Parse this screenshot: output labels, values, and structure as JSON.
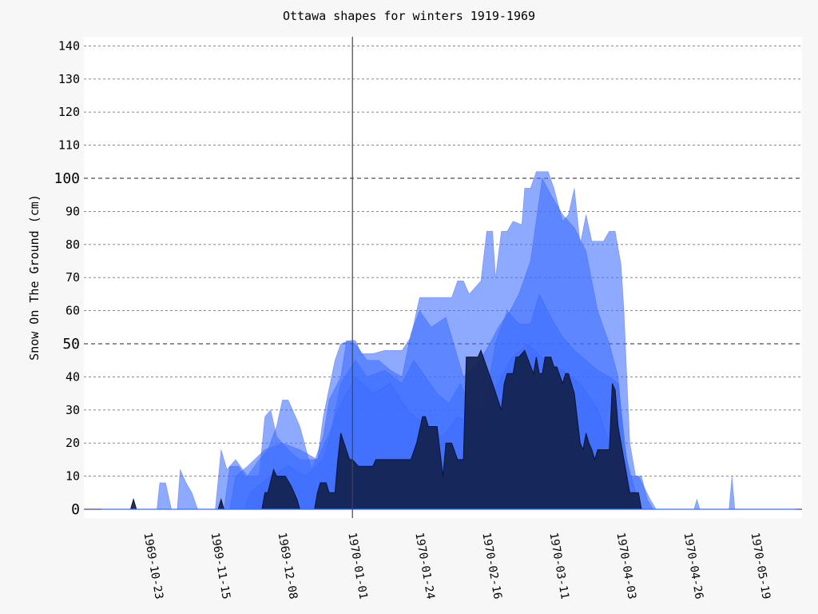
{
  "chart_data": {
    "type": "area",
    "title": "Ottawa shapes for winters 1919-1969",
    "xlabel": "",
    "ylabel": "Snow On The Ground (cm)",
    "ylim": [
      0,
      142
    ],
    "xlim": [
      "1969-10-01",
      "1970-06-04"
    ],
    "x_ticks": [
      "1969-10-23",
      "1969-11-15",
      "1969-12-08",
      "1970-01-01",
      "1970-01-24",
      "1970-02-16",
      "1970-03-11",
      "1970-04-03",
      "1970-04-26",
      "1970-05-19"
    ],
    "y_ticks": [
      0,
      10,
      20,
      30,
      40,
      50,
      60,
      70,
      80,
      90,
      100,
      110,
      120,
      130,
      140
    ],
    "y_major_ticks": [
      0,
      50,
      100
    ],
    "grid": true,
    "vline": "1970-01-01",
    "colors": {
      "winter_fill": "#3d6cff",
      "highlight_fill": "#13214f",
      "background": "#f7f7f7",
      "plot_background": "#ffffff"
    },
    "series": [
      {
        "values": [
          [
            "1969-10-07",
            0
          ],
          [
            "1969-10-26",
            0
          ],
          [
            "1969-10-27",
            8
          ],
          [
            "1969-10-29",
            8
          ],
          [
            "1969-10-31",
            0
          ],
          [
            "1969-11-02",
            0
          ],
          [
            "1969-11-03",
            12
          ],
          [
            "1969-11-05",
            8
          ],
          [
            "1969-11-07",
            5
          ],
          [
            "1969-11-09",
            0
          ],
          [
            "1969-11-18",
            0
          ],
          [
            "1969-11-20",
            13
          ],
          [
            "1969-11-23",
            13
          ],
          [
            "1969-11-25",
            10
          ],
          [
            "1969-11-30",
            10
          ],
          [
            "1969-12-02",
            28
          ],
          [
            "1969-12-04",
            30
          ],
          [
            "1969-12-06",
            22
          ],
          [
            "1969-12-10",
            18
          ],
          [
            "1969-12-14",
            15
          ],
          [
            "1969-12-20",
            15
          ],
          [
            "1969-12-22",
            28
          ],
          [
            "1969-12-26",
            45
          ],
          [
            "1969-12-28",
            50
          ],
          [
            "1969-12-31",
            51
          ],
          [
            "1970-01-02",
            51
          ],
          [
            "1970-01-04",
            47
          ],
          [
            "1970-01-08",
            47
          ],
          [
            "1970-01-12",
            48
          ],
          [
            "1970-01-18",
            48
          ],
          [
            "1970-01-21",
            52
          ],
          [
            "1970-01-24",
            64
          ],
          [
            "1970-01-30",
            64
          ],
          [
            "1970-02-04",
            64
          ],
          [
            "1970-02-06",
            69
          ],
          [
            "1970-02-08",
            69
          ],
          [
            "1970-02-10",
            65
          ],
          [
            "1970-02-14",
            69
          ],
          [
            "1970-02-16",
            84
          ],
          [
            "1970-02-18",
            84
          ],
          [
            "1970-02-19",
            70
          ],
          [
            "1970-02-21",
            84
          ],
          [
            "1970-02-23",
            84
          ],
          [
            "1970-02-25",
            87
          ],
          [
            "1970-02-28",
            86
          ],
          [
            "1970-03-01",
            97
          ],
          [
            "1970-03-03",
            97
          ],
          [
            "1970-03-05",
            102
          ],
          [
            "1970-03-09",
            102
          ],
          [
            "1970-03-11",
            97
          ],
          [
            "1970-03-14",
            87
          ],
          [
            "1970-03-16",
            89
          ],
          [
            "1970-03-18",
            97
          ],
          [
            "1970-03-20",
            80
          ],
          [
            "1970-03-22",
            89
          ],
          [
            "1970-03-24",
            81
          ],
          [
            "1970-03-28",
            81
          ],
          [
            "1970-03-30",
            84
          ],
          [
            "1970-04-01",
            84
          ],
          [
            "1970-04-03",
            74
          ],
          [
            "1970-04-04",
            60
          ],
          [
            "1970-04-05",
            40
          ],
          [
            "1970-04-06",
            20
          ],
          [
            "1970-04-08",
            10
          ],
          [
            "1970-04-10",
            10
          ],
          [
            "1970-04-12",
            3
          ],
          [
            "1970-04-14",
            0
          ],
          [
            "1970-06-02",
            0
          ]
        ]
      },
      {
        "values": [
          [
            "1969-10-07",
            0
          ],
          [
            "1969-11-15",
            0
          ],
          [
            "1969-11-17",
            18
          ],
          [
            "1969-11-19",
            12
          ],
          [
            "1969-11-22",
            15
          ],
          [
            "1969-11-26",
            10
          ],
          [
            "1969-11-30",
            15
          ],
          [
            "1969-12-03",
            18
          ],
          [
            "1969-12-06",
            25
          ],
          [
            "1969-12-08",
            33
          ],
          [
            "1969-12-10",
            33
          ],
          [
            "1969-12-14",
            25
          ],
          [
            "1969-12-18",
            12
          ],
          [
            "1969-12-22",
            22
          ],
          [
            "1969-12-24",
            33
          ],
          [
            "1969-12-28",
            40
          ],
          [
            "1969-12-30",
            51
          ],
          [
            "1970-01-02",
            50
          ],
          [
            "1970-01-06",
            45
          ],
          [
            "1970-01-10",
            45
          ],
          [
            "1970-01-14",
            42
          ],
          [
            "1970-01-18",
            40
          ],
          [
            "1970-01-21",
            53
          ],
          [
            "1970-01-24",
            60
          ],
          [
            "1970-01-28",
            55
          ],
          [
            "1970-02-02",
            58
          ],
          [
            "1970-02-08",
            40
          ],
          [
            "1970-02-13",
            44
          ],
          [
            "1970-02-17",
            50
          ],
          [
            "1970-02-20",
            55
          ],
          [
            "1970-02-24",
            60
          ],
          [
            "1970-02-27",
            65
          ],
          [
            "1970-03-03",
            75
          ],
          [
            "1970-03-07",
            100
          ],
          [
            "1970-03-10",
            95
          ],
          [
            "1970-03-14",
            89
          ],
          [
            "1970-03-18",
            85
          ],
          [
            "1970-03-22",
            78
          ],
          [
            "1970-03-26",
            60
          ],
          [
            "1970-03-30",
            50
          ],
          [
            "1970-04-02",
            40
          ],
          [
            "1970-04-04",
            20
          ],
          [
            "1970-04-06",
            10
          ],
          [
            "1970-04-09",
            10
          ],
          [
            "1970-04-13",
            3
          ],
          [
            "1970-04-15",
            0
          ],
          [
            "1970-06-02",
            0
          ]
        ]
      },
      {
        "values": [
          [
            "1969-10-07",
            0
          ],
          [
            "1969-11-20",
            0
          ],
          [
            "1969-11-22",
            10
          ],
          [
            "1969-11-26",
            13
          ],
          [
            "1969-12-02",
            18
          ],
          [
            "1969-12-08",
            20
          ],
          [
            "1969-12-14",
            18
          ],
          [
            "1969-12-20",
            15
          ],
          [
            "1969-12-25",
            25
          ],
          [
            "1969-12-28",
            38
          ],
          [
            "1970-01-02",
            45
          ],
          [
            "1970-01-06",
            40
          ],
          [
            "1970-01-12",
            42
          ],
          [
            "1970-01-18",
            38
          ],
          [
            "1970-01-22",
            45
          ],
          [
            "1970-01-26",
            40
          ],
          [
            "1970-01-30",
            35
          ],
          [
            "1970-02-03",
            32
          ],
          [
            "1970-02-07",
            38
          ],
          [
            "1970-02-11",
            30
          ],
          [
            "1970-02-15",
            30
          ],
          [
            "1970-02-19",
            50
          ],
          [
            "1970-02-23",
            60
          ],
          [
            "1970-02-27",
            56
          ],
          [
            "1970-03-03",
            56
          ],
          [
            "1970-03-06",
            65
          ],
          [
            "1970-03-10",
            58
          ],
          [
            "1970-03-14",
            52
          ],
          [
            "1970-03-18",
            48
          ],
          [
            "1970-03-22",
            45
          ],
          [
            "1970-03-26",
            42
          ],
          [
            "1970-03-30",
            40
          ],
          [
            "1970-04-02",
            38
          ],
          [
            "1970-04-05",
            15
          ],
          [
            "1970-04-08",
            5
          ],
          [
            "1970-04-10",
            0
          ],
          [
            "1970-06-02",
            0
          ]
        ]
      },
      {
        "values": [
          [
            "1969-10-07",
            0
          ],
          [
            "1969-11-25",
            0
          ],
          [
            "1969-11-27",
            5
          ],
          [
            "1969-12-04",
            10
          ],
          [
            "1969-12-10",
            13
          ],
          [
            "1969-12-16",
            10
          ],
          [
            "1969-12-22",
            15
          ],
          [
            "1969-12-27",
            30
          ],
          [
            "1970-01-02",
            40
          ],
          [
            "1970-01-08",
            35
          ],
          [
            "1970-01-14",
            38
          ],
          [
            "1970-01-20",
            30
          ],
          [
            "1970-01-26",
            25
          ],
          [
            "1970-02-01",
            22
          ],
          [
            "1970-02-06",
            28
          ],
          [
            "1970-02-12",
            25
          ],
          [
            "1970-02-18",
            35
          ],
          [
            "1970-02-24",
            45
          ],
          [
            "1970-03-02",
            50
          ],
          [
            "1970-03-08",
            45
          ],
          [
            "1970-03-14",
            42
          ],
          [
            "1970-03-20",
            38
          ],
          [
            "1970-03-26",
            30
          ],
          [
            "1970-04-01",
            15
          ],
          [
            "1970-04-05",
            5
          ],
          [
            "1970-04-08",
            0
          ],
          [
            "1970-06-02",
            0
          ]
        ]
      },
      {
        "values": [
          [
            "1969-10-07",
            0
          ],
          [
            "1970-04-28",
            0
          ],
          [
            "1970-04-29",
            3
          ],
          [
            "1970-04-30",
            0
          ],
          [
            "1970-05-10",
            0
          ],
          [
            "1970-05-11",
            10
          ],
          [
            "1970-05-12",
            0
          ],
          [
            "1970-06-02",
            0
          ]
        ]
      },
      {
        "highlight": true,
        "values": [
          [
            "1969-10-07",
            0
          ],
          [
            "1969-10-17",
            0
          ],
          [
            "1969-10-18",
            3
          ],
          [
            "1969-10-19",
            0
          ],
          [
            "1969-11-16",
            0
          ],
          [
            "1969-11-17",
            3
          ],
          [
            "1969-11-18",
            0
          ],
          [
            "1969-12-01",
            0
          ],
          [
            "1969-12-02",
            5
          ],
          [
            "1969-12-03",
            5
          ],
          [
            "1969-12-05",
            12
          ],
          [
            "1969-12-06",
            10
          ],
          [
            "1969-12-09",
            10
          ],
          [
            "1969-12-11",
            7
          ],
          [
            "1969-12-13",
            3
          ],
          [
            "1969-12-14",
            0
          ],
          [
            "1969-12-19",
            0
          ],
          [
            "1969-12-20",
            5
          ],
          [
            "1969-12-21",
            8
          ],
          [
            "1969-12-23",
            8
          ],
          [
            "1969-12-24",
            5
          ],
          [
            "1969-12-26",
            5
          ],
          [
            "1969-12-27",
            15
          ],
          [
            "1969-12-28",
            23
          ],
          [
            "1969-12-31",
            15
          ],
          [
            "1970-01-01",
            15
          ],
          [
            "1970-01-03",
            13
          ],
          [
            "1970-01-08",
            13
          ],
          [
            "1970-01-09",
            15
          ],
          [
            "1970-01-21",
            15
          ],
          [
            "1970-01-23",
            20
          ],
          [
            "1970-01-25",
            28
          ],
          [
            "1970-01-26",
            28
          ],
          [
            "1970-01-27",
            25
          ],
          [
            "1970-01-30",
            25
          ],
          [
            "1970-02-01",
            10
          ],
          [
            "1970-02-02",
            20
          ],
          [
            "1970-02-04",
            20
          ],
          [
            "1970-02-06",
            15
          ],
          [
            "1970-02-08",
            15
          ],
          [
            "1970-02-09",
            46
          ],
          [
            "1970-02-13",
            46
          ],
          [
            "1970-02-14",
            48
          ],
          [
            "1970-02-18",
            38
          ],
          [
            "1970-02-21",
            30
          ],
          [
            "1970-02-22",
            38
          ],
          [
            "1970-02-23",
            41
          ],
          [
            "1970-02-25",
            41
          ],
          [
            "1970-02-26",
            46
          ],
          [
            "1970-02-27",
            46
          ],
          [
            "1970-03-01",
            48
          ],
          [
            "1970-03-04",
            41
          ],
          [
            "1970-03-05",
            46
          ],
          [
            "1970-03-06",
            41
          ],
          [
            "1970-03-07",
            41
          ],
          [
            "1970-03-08",
            46
          ],
          [
            "1970-03-10",
            46
          ],
          [
            "1970-03-11",
            43
          ],
          [
            "1970-03-12",
            43
          ],
          [
            "1970-03-14",
            38
          ],
          [
            "1970-03-15",
            41
          ],
          [
            "1970-03-16",
            41
          ],
          [
            "1970-03-18",
            35
          ],
          [
            "1970-03-20",
            20
          ],
          [
            "1970-03-21",
            18
          ],
          [
            "1970-03-22",
            23
          ],
          [
            "1970-03-23",
            20
          ],
          [
            "1970-03-24",
            18
          ],
          [
            "1970-03-25",
            15
          ],
          [
            "1970-03-26",
            18
          ],
          [
            "1970-03-30",
            18
          ],
          [
            "1970-03-31",
            38
          ],
          [
            "1970-04-01",
            36
          ],
          [
            "1970-04-02",
            25
          ],
          [
            "1970-04-04",
            15
          ],
          [
            "1970-04-06",
            5
          ],
          [
            "1970-04-09",
            5
          ],
          [
            "1970-04-10",
            0
          ],
          [
            "1970-06-02",
            0
          ]
        ]
      }
    ]
  }
}
